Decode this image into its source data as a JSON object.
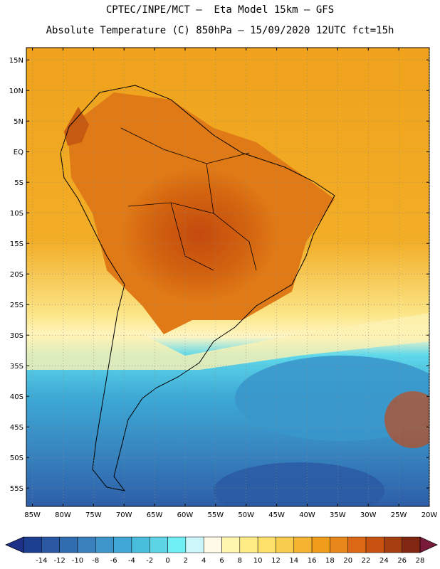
{
  "header": {
    "line1": "CPTEC/INPE/MCT –  Eta Model 15km – GFS",
    "line2": "Absolute Temperature (C) 850hPa – 15/09/2020 12UTC fct=15h"
  },
  "map": {
    "lat_labels": [
      "15N",
      "10N",
      "5N",
      "EQ",
      "5S",
      "10S",
      "15S",
      "20S",
      "25S",
      "30S",
      "35S",
      "40S",
      "45S",
      "50S",
      "55S"
    ],
    "lon_labels": [
      "85W",
      "80W",
      "75W",
      "70W",
      "65W",
      "60W",
      "55W",
      "50W",
      "45W",
      "40W",
      "35W",
      "30W",
      "25W",
      "20W"
    ]
  },
  "colorbar": {
    "labels": [
      "-14",
      "-12",
      "-10",
      "-8",
      "-6",
      "-4",
      "-2",
      "0",
      "2",
      "4",
      "6",
      "8",
      "10",
      "12",
      "14",
      "16",
      "18",
      "20",
      "22",
      "24",
      "26",
      "28"
    ],
    "colors": [
      "#1d3f8f",
      "#2a58a3",
      "#2f6cb0",
      "#3a80bd",
      "#3d95c9",
      "#3fa7d4",
      "#48bddc",
      "#5dd4e6",
      "#6feef4",
      "#cdf6fb",
      "#fffbe6",
      "#fff7ad",
      "#ffec85",
      "#fde06a",
      "#f8cc4c",
      "#f4b330",
      "#f09d1c",
      "#e8871a",
      "#dc6714",
      "#c85210",
      "#a53e10",
      "#7f2710"
    ],
    "low_color": "#1d3188",
    "high_color": "#7a1a3a"
  }
}
